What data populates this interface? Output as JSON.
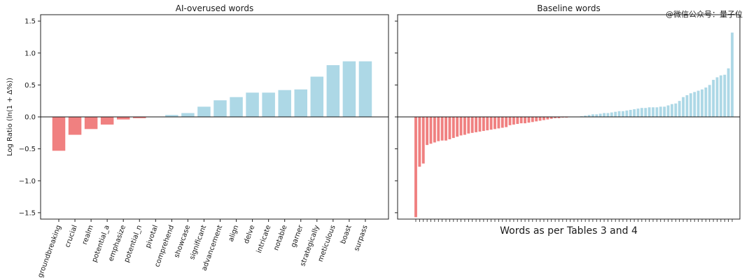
{
  "watermark": "@微信公众号：量子位",
  "chart_data": [
    {
      "type": "bar",
      "title": "AI-overused words",
      "ylabel": "Log Ratio (ln(1 + Δ%))",
      "xlabel": "",
      "ylim": [
        -1.6,
        1.6
      ],
      "yticks": [
        -1.5,
        -1.0,
        -0.5,
        0.0,
        0.5,
        1.0,
        1.5
      ],
      "ytick_labels": [
        "−1.5",
        "−1.0",
        "−0.5",
        "0.0",
        "0.5",
        "1.0",
        "1.5"
      ],
      "grid": false,
      "colors": {
        "negative": "#f08080",
        "positive": "#add8e6"
      },
      "categories": [
        "groundbreaking",
        "crucial",
        "realm",
        "potential_a",
        "emphasize",
        "potential_n",
        "pivotal",
        "comprehend",
        "showcase",
        "significant",
        "advancement",
        "align",
        "delve",
        "intricate",
        "notable",
        "garner",
        "strategically",
        "meticulous",
        "boast",
        "surpass"
      ],
      "values": [
        -0.53,
        -0.28,
        -0.19,
        -0.12,
        -0.04,
        -0.02,
        0.0,
        0.03,
        0.06,
        0.16,
        0.26,
        0.31,
        0.38,
        0.38,
        0.42,
        0.43,
        0.63,
        0.81,
        0.87,
        0.87
      ]
    },
    {
      "type": "bar",
      "title": "Baseline words",
      "xlabel": "Words as per Tables 3 and 4",
      "ylabel": "",
      "ylim": [
        -1.6,
        1.6
      ],
      "yticks": [
        -1.5,
        -1.0,
        -0.5,
        0.0,
        0.5,
        1.0,
        1.5
      ],
      "grid": false,
      "colors": {
        "negative": "#f08080",
        "positive": "#add8e6"
      },
      "values": [
        -1.57,
        -0.78,
        -0.73,
        -0.44,
        -0.42,
        -0.4,
        -0.38,
        -0.37,
        -0.37,
        -0.35,
        -0.33,
        -0.31,
        -0.29,
        -0.28,
        -0.26,
        -0.25,
        -0.24,
        -0.23,
        -0.22,
        -0.21,
        -0.2,
        -0.19,
        -0.18,
        -0.17,
        -0.16,
        -0.13,
        -0.12,
        -0.11,
        -0.1,
        -0.1,
        -0.09,
        -0.08,
        -0.07,
        -0.06,
        -0.05,
        -0.04,
        -0.03,
        -0.02,
        -0.02,
        -0.01,
        -0.01,
        0.0,
        0.0,
        0.0,
        0.01,
        0.02,
        0.03,
        0.04,
        0.04,
        0.05,
        0.06,
        0.06,
        0.07,
        0.08,
        0.09,
        0.09,
        0.1,
        0.11,
        0.12,
        0.13,
        0.14,
        0.14,
        0.15,
        0.15,
        0.15,
        0.16,
        0.16,
        0.18,
        0.2,
        0.21,
        0.25,
        0.31,
        0.34,
        0.37,
        0.39,
        0.41,
        0.43,
        0.46,
        0.5,
        0.58,
        0.62,
        0.65,
        0.66,
        0.76,
        1.32
      ]
    }
  ]
}
